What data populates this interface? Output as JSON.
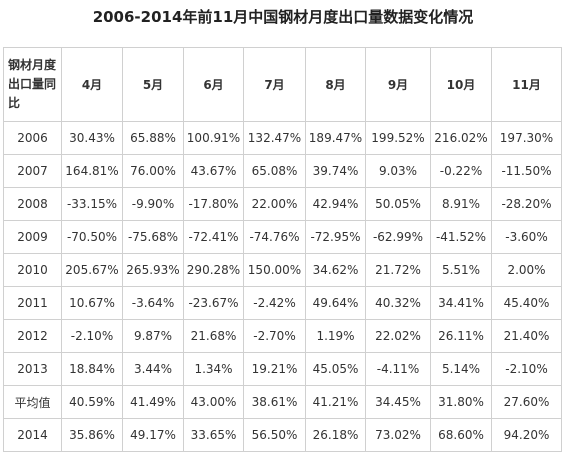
{
  "title": "2006-2014年前11月中国钢材月度出口量数据变化情况",
  "table": {
    "corner_header": "钢材月度出口量同比",
    "columns": [
      "4月",
      "5月",
      "6月",
      "7月",
      "8月",
      "9月",
      "10月",
      "11月"
    ],
    "rows": [
      {
        "label": "2006",
        "values": [
          "30.43%",
          "65.88%",
          "100.91%",
          "132.47%",
          "189.47%",
          "199.52%",
          "216.02%",
          "197.30%"
        ]
      },
      {
        "label": "2007",
        "values": [
          "164.81%",
          "76.00%",
          "43.67%",
          "65.08%",
          "39.74%",
          "9.03%",
          "-0.22%",
          "-11.50%"
        ]
      },
      {
        "label": "2008",
        "values": [
          "-33.15%",
          "-9.90%",
          "-17.80%",
          "22.00%",
          "42.94%",
          "50.05%",
          "8.91%",
          "-28.20%"
        ]
      },
      {
        "label": "2009",
        "values": [
          "-70.50%",
          "-75.68%",
          "-72.41%",
          "-74.76%",
          "-72.95%",
          "-62.99%",
          "-41.52%",
          "-3.60%"
        ]
      },
      {
        "label": "2010",
        "values": [
          "205.67%",
          "265.93%",
          "290.28%",
          "150.00%",
          "34.62%",
          "21.72%",
          "5.51%",
          "2.00%"
        ]
      },
      {
        "label": "2011",
        "values": [
          "10.67%",
          "-3.64%",
          "-23.67%",
          "-2.42%",
          "49.64%",
          "40.32%",
          "34.41%",
          "45.40%"
        ]
      },
      {
        "label": "2012",
        "values": [
          "-2.10%",
          "9.87%",
          "21.68%",
          "-2.70%",
          "1.19%",
          "22.02%",
          "26.11%",
          "21.40%"
        ]
      },
      {
        "label": "2013",
        "values": [
          "18.84%",
          "3.44%",
          "1.34%",
          "19.21%",
          "45.05%",
          "-4.11%",
          "5.14%",
          "-2.10%"
        ]
      },
      {
        "label": "平均值",
        "values": [
          "40.59%",
          "41.49%",
          "43.00%",
          "38.61%",
          "41.21%",
          "34.45%",
          "31.80%",
          "27.60%"
        ]
      },
      {
        "label": "2014",
        "values": [
          "35.86%",
          "49.17%",
          "33.65%",
          "56.50%",
          "26.18%",
          "73.02%",
          "68.60%",
          "94.20%"
        ]
      }
    ]
  }
}
